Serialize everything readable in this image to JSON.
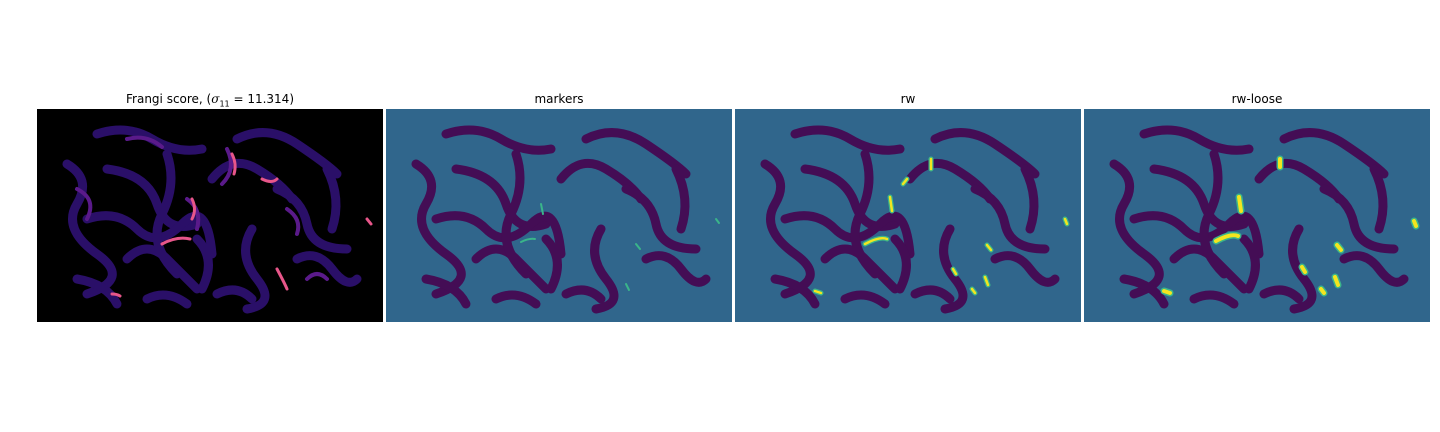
{
  "panels": [
    {
      "id": "frangi",
      "title_prefix": "Frangi score, (",
      "title_sigma": "σ",
      "title_sub": "11",
      "title_eq": " = 11.314)",
      "colormap": "magma",
      "background": "#000000",
      "fill": "#2a0f68",
      "highlight": "#e8568a"
    },
    {
      "id": "markers",
      "title": "markers",
      "colormap": "viridis",
      "background": "#30668c",
      "fill": "#440d55",
      "highlight": "#3ab58a"
    },
    {
      "id": "rw",
      "title": "rw",
      "colormap": "viridis",
      "background": "#30668c",
      "fill": "#440d55",
      "highlight": "#f3e51f"
    },
    {
      "id": "rw-loose",
      "title": "rw-loose",
      "colormap": "viridis",
      "background": "#30668c",
      "fill": "#440d55",
      "highlight": "#f3e51f"
    }
  ]
}
